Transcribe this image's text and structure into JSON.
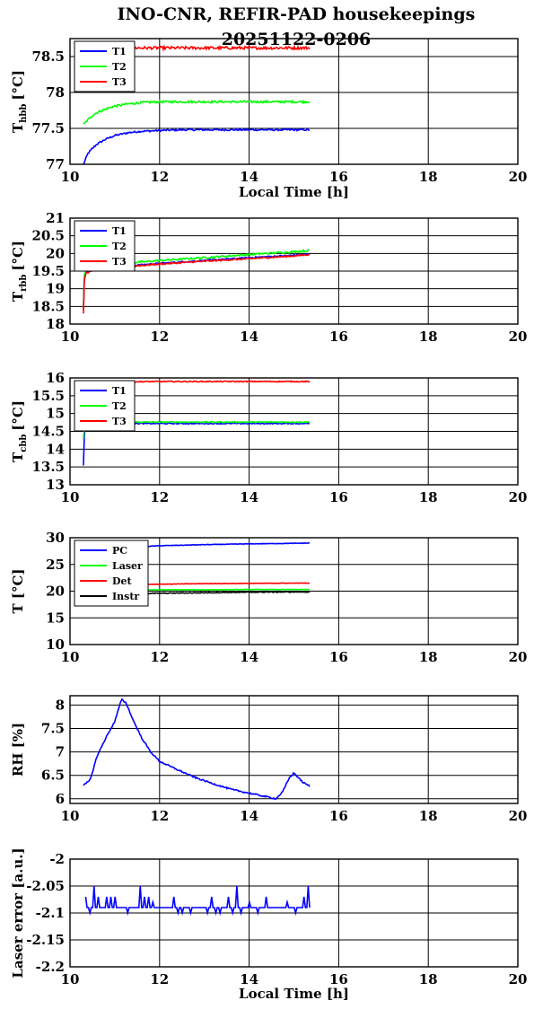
{
  "figure": {
    "title_line1": "INO-CNR, REFIR-PAD housekeepings",
    "title_line2": "20251122-0206"
  },
  "chart_data": [
    {
      "type": "line",
      "id": "tbb",
      "ylabel_main": "T",
      "ylabel_sub": "hbb",
      "ylabel_unit": "[°C]",
      "xlabel": "Local Time [h]",
      "xlim": [
        10,
        20
      ],
      "ylim": [
        77,
        78.75
      ],
      "xticks": [
        10,
        12,
        14,
        16,
        18,
        20
      ],
      "xtick_labels": [
        "10",
        "12",
        "14",
        "16",
        "18",
        "20"
      ],
      "yticks": [
        77,
        77.5,
        78,
        78.5
      ],
      "ytick_labels": [
        "77",
        "77.5",
        "78",
        "78.5"
      ],
      "grid": true,
      "legend_position": "top-left",
      "series": [
        {
          "name": "T1",
          "color": "#0000ff",
          "x": [
            10.3,
            10.4,
            10.5,
            10.6,
            10.8,
            11.0,
            11.3,
            11.6,
            12.0,
            12.5,
            13.0,
            14.0,
            15.0,
            15.35
          ],
          "y": [
            77.0,
            77.15,
            77.22,
            77.28,
            77.35,
            77.4,
            77.44,
            77.46,
            77.47,
            77.48,
            77.48,
            77.48,
            77.48,
            77.48
          ],
          "noise": 0.012
        },
        {
          "name": "T2",
          "color": "#00ff00",
          "x": [
            10.3,
            10.4,
            10.5,
            10.6,
            10.8,
            11.0,
            11.3,
            11.6,
            12.0,
            12.5,
            13.0,
            14.0,
            15.0,
            15.35
          ],
          "y": [
            77.55,
            77.62,
            77.68,
            77.72,
            77.77,
            77.81,
            77.84,
            77.86,
            77.87,
            77.87,
            77.87,
            77.87,
            77.87,
            77.87
          ],
          "noise": 0.015
        },
        {
          "name": "T3",
          "color": "#ff0000",
          "x": [
            10.3,
            10.5,
            11.0,
            12.0,
            13.0,
            14.0,
            15.0,
            15.35
          ],
          "y": [
            78.6,
            78.61,
            78.62,
            78.62,
            78.62,
            78.62,
            78.62,
            78.62
          ],
          "noise": 0.02
        }
      ]
    },
    {
      "type": "line",
      "id": "trbb",
      "ylabel_main": "T",
      "ylabel_sub": "rbb",
      "ylabel_unit": "[°C]",
      "xlabel": "",
      "xlim": [
        10,
        20
      ],
      "ylim": [
        18,
        21
      ],
      "xticks": [
        10,
        12,
        14,
        16,
        18,
        20
      ],
      "xtick_labels": [
        "10",
        "12",
        "14",
        "16",
        "18",
        "20"
      ],
      "yticks": [
        18,
        18.5,
        19,
        19.5,
        20,
        20.5,
        21
      ],
      "ytick_labels": [
        "18",
        "18.5",
        "19",
        "19.5",
        "20",
        "20.5",
        "21"
      ],
      "grid": true,
      "legend_position": "top-left",
      "series": [
        {
          "name": "T1",
          "color": "#0000ff",
          "x": [
            10.3,
            10.32,
            10.36,
            10.5,
            11.0,
            12.0,
            13.0,
            14.0,
            15.0,
            15.35
          ],
          "y": [
            18.4,
            19.3,
            19.5,
            19.55,
            19.62,
            19.72,
            19.8,
            19.88,
            19.95,
            19.98
          ],
          "noise": 0.02
        },
        {
          "name": "T2",
          "color": "#00ff00",
          "x": [
            10.3,
            10.32,
            10.36,
            10.5,
            11.0,
            12.0,
            13.0,
            14.0,
            15.0,
            15.35
          ],
          "y": [
            18.5,
            19.4,
            19.55,
            19.6,
            19.7,
            19.8,
            19.88,
            19.97,
            20.05,
            20.08
          ],
          "noise": 0.025
        },
        {
          "name": "T3",
          "color": "#ff0000",
          "x": [
            10.3,
            10.32,
            10.36,
            10.5,
            11.0,
            12.0,
            13.0,
            14.0,
            15.0,
            15.35
          ],
          "y": [
            18.3,
            19.25,
            19.45,
            19.52,
            19.6,
            19.7,
            19.78,
            19.85,
            19.93,
            19.97
          ],
          "noise": 0.02
        }
      ]
    },
    {
      "type": "line",
      "id": "tcbb",
      "ylabel_main": "T",
      "ylabel_sub": "cbb",
      "ylabel_unit": "[°C]",
      "xlabel": "",
      "xlim": [
        10,
        20
      ],
      "ylim": [
        13,
        16
      ],
      "xticks": [
        10,
        12,
        14,
        16,
        18,
        20
      ],
      "xtick_labels": [
        "10",
        "12",
        "14",
        "16",
        "18",
        "20"
      ],
      "yticks": [
        13,
        13.5,
        14,
        14.5,
        15,
        15.5,
        16
      ],
      "ytick_labels": [
        "13",
        "13.5",
        "14",
        "14.5",
        "15",
        "15.5",
        "16"
      ],
      "grid": true,
      "legend_position": "top-left",
      "series": [
        {
          "name": "T1",
          "color": "#0000ff",
          "x": [
            10.3,
            10.31,
            10.33,
            10.36,
            10.5,
            11.0,
            12.0,
            13.0,
            14.0,
            15.0,
            15.35
          ],
          "y": [
            13.55,
            14.2,
            14.55,
            14.7,
            14.72,
            14.72,
            14.72,
            14.72,
            14.72,
            14.72,
            14.72
          ],
          "noise": 0.015
        },
        {
          "name": "T2",
          "color": "#00ff00",
          "x": [
            10.3,
            10.31,
            10.33,
            10.36,
            10.5,
            11.0,
            12.0,
            13.0,
            14.0,
            15.0,
            15.35
          ],
          "y": [
            14.3,
            14.55,
            14.7,
            14.75,
            14.76,
            14.76,
            14.76,
            14.76,
            14.76,
            14.76,
            14.76
          ],
          "noise": 0.015
        },
        {
          "name": "T3",
          "color": "#ff0000",
          "x": [
            10.3,
            10.5,
            11.0,
            12.0,
            13.0,
            14.0,
            15.0,
            15.35
          ],
          "y": [
            15.88,
            15.88,
            15.89,
            15.9,
            15.9,
            15.9,
            15.9,
            15.9
          ],
          "noise": 0.015
        }
      ]
    },
    {
      "type": "line",
      "id": "tenv",
      "ylabel_main": "T [°C]",
      "ylabel_sub": "",
      "ylabel_unit": "",
      "xlabel": "",
      "xlim": [
        10,
        20
      ],
      "ylim": [
        10,
        30
      ],
      "xticks": [
        10,
        12,
        14,
        16,
        18,
        20
      ],
      "xtick_labels": [
        "10",
        "12",
        "14",
        "16",
        "18",
        "20"
      ],
      "yticks": [
        10,
        15,
        20,
        25,
        30
      ],
      "ytick_labels": [
        "10",
        "15",
        "20",
        "25",
        "30"
      ],
      "grid": true,
      "legend_position": "top-left",
      "series": [
        {
          "name": "PC",
          "color": "#0000ff",
          "x": [
            10.3,
            10.5,
            11.0,
            11.5,
            12.0,
            13.0,
            14.0,
            15.0,
            15.35
          ],
          "y": [
            26.5,
            27.4,
            28.0,
            28.3,
            28.5,
            28.7,
            28.85,
            28.95,
            29.0
          ],
          "noise": 0.05
        },
        {
          "name": "Laser",
          "color": "#00ff00",
          "x": [
            10.3,
            11.0,
            12.0,
            13.0,
            14.0,
            15.0,
            15.35
          ],
          "y": [
            20.2,
            20.2,
            20.25,
            20.25,
            20.3,
            20.3,
            20.3
          ],
          "noise": 0.05
        },
        {
          "name": "Det",
          "color": "#ff0000",
          "x": [
            10.3,
            11.0,
            12.0,
            13.0,
            14.0,
            15.0,
            15.35
          ],
          "y": [
            21.1,
            21.2,
            21.3,
            21.4,
            21.45,
            21.5,
            21.5
          ],
          "noise": 0.04
        },
        {
          "name": "Instr",
          "color": "#000000",
          "x": [
            10.3,
            11.0,
            12.0,
            13.0,
            14.0,
            15.0,
            15.35
          ],
          "y": [
            19.4,
            19.5,
            19.6,
            19.7,
            19.8,
            19.85,
            19.85
          ],
          "noise": 0.08
        }
      ]
    },
    {
      "type": "line",
      "id": "rh",
      "ylabel_main": "RH [%]",
      "ylabel_sub": "",
      "ylabel_unit": "",
      "xlabel": "",
      "xlim": [
        10,
        20
      ],
      "ylim": [
        5.9,
        8.2
      ],
      "xticks": [
        10,
        12,
        14,
        16,
        18,
        20
      ],
      "xtick_labels": [
        "10",
        "12",
        "14",
        "16",
        "18",
        "20"
      ],
      "yticks": [
        6,
        6.5,
        7,
        7.5,
        8
      ],
      "ytick_labels": [
        "6",
        "6.5",
        "7",
        "7.5",
        "8"
      ],
      "grid": true,
      "legend_position": "none",
      "series": [
        {
          "name": "",
          "color": "#0000ff",
          "x": [
            10.3,
            10.45,
            10.6,
            10.8,
            11.0,
            11.15,
            11.25,
            11.4,
            11.6,
            11.8,
            12.0,
            12.4,
            12.8,
            13.2,
            13.6,
            14.0,
            14.3,
            14.6,
            14.75,
            14.9,
            15.0,
            15.1,
            15.2,
            15.35
          ],
          "y": [
            6.28,
            6.4,
            6.9,
            7.3,
            7.65,
            8.12,
            8.05,
            7.7,
            7.3,
            7.0,
            6.8,
            6.62,
            6.45,
            6.32,
            6.2,
            6.12,
            6.06,
            6.0,
            6.15,
            6.45,
            6.55,
            6.45,
            6.35,
            6.27
          ],
          "noise": 0.015
        }
      ]
    },
    {
      "type": "line",
      "id": "laser",
      "ylabel_main": "Laser error [a.u.]",
      "ylabel_sub": "",
      "ylabel_unit": "",
      "xlabel": "Local Time [h]",
      "xlim": [
        10,
        20
      ],
      "ylim": [
        -2.2,
        -2
      ],
      "xticks": [
        10,
        12,
        14,
        16,
        18,
        20
      ],
      "xtick_labels": [
        "10",
        "12",
        "14",
        "16",
        "18",
        "20"
      ],
      "yticks": [
        -2.2,
        -2.15,
        -2.1,
        -2.05,
        -2
      ],
      "ytick_labels": [
        "-2.2",
        "-2.15",
        "-2.1",
        "-2.05",
        "-2"
      ],
      "grid": true,
      "legend_position": "none",
      "series": [
        {
          "name": "",
          "color": "#0000ff",
          "quantized": [
            -2.05,
            -2.07,
            -2.09,
            -2.1,
            -2.07,
            -2.09,
            -2.09,
            -2.1,
            -2.09,
            -2.07,
            -2.09,
            -2.08
          ],
          "x": [
            10.35,
            15.35
          ],
          "y": [
            -2.09,
            -2.1
          ],
          "noise": 0
        }
      ]
    }
  ]
}
